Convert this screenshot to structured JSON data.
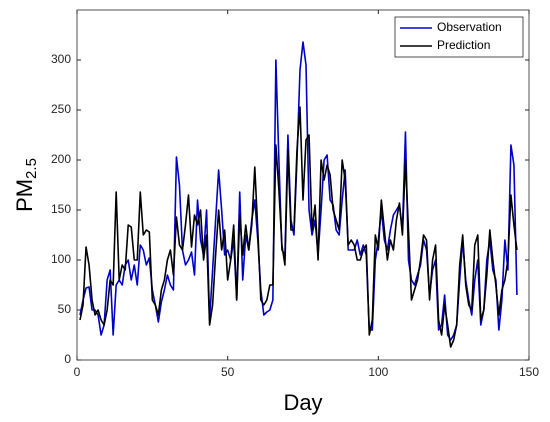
{
  "chart_data": {
    "type": "line",
    "xlabel": "Day",
    "ylabel": [
      "PM",
      "2.5"
    ],
    "x": [
      1,
      2,
      3,
      4,
      5,
      6,
      7,
      8,
      9,
      10,
      11,
      12,
      13,
      14,
      15,
      16,
      17,
      18,
      19,
      20,
      21,
      22,
      23,
      24,
      25,
      26,
      27,
      28,
      29,
      30,
      31,
      32,
      33,
      34,
      35,
      36,
      37,
      38,
      39,
      40,
      41,
      42,
      43,
      44,
      45,
      46,
      47,
      48,
      49,
      50,
      51,
      52,
      53,
      54,
      55,
      56,
      57,
      58,
      59,
      60,
      61,
      62,
      63,
      64,
      65,
      66,
      67,
      68,
      69,
      70,
      71,
      72,
      73,
      74,
      75,
      76,
      77,
      78,
      79,
      80,
      81,
      82,
      83,
      84,
      85,
      86,
      87,
      88,
      89,
      90,
      91,
      92,
      93,
      94,
      95,
      96,
      97,
      98,
      99,
      100,
      101,
      102,
      103,
      104,
      105,
      106,
      107,
      108,
      109,
      110,
      111,
      112,
      113,
      114,
      115,
      116,
      117,
      118,
      119,
      120,
      121,
      122,
      123,
      124,
      125,
      126,
      127,
      128,
      129,
      130,
      131,
      132,
      133,
      134,
      135,
      136,
      137,
      138,
      139,
      140,
      141,
      142,
      143,
      144,
      145,
      146
    ],
    "series": [
      {
        "name": "Observation",
        "color": "#0000cd",
        "values": [
          45,
          60,
          72,
          73,
          50,
          50,
          45,
          25,
          35,
          80,
          90,
          25,
          75,
          80,
          75,
          95,
          100,
          80,
          95,
          75,
          115,
          110,
          95,
          102,
          70,
          55,
          38,
          58,
          70,
          85,
          75,
          70,
          203,
          175,
          110,
          95,
          100,
          108,
          85,
          160,
          120,
          105,
          150,
          40,
          90,
          140,
          190,
          150,
          105,
          110,
          100,
          120,
          60,
          168,
          80,
          125,
          110,
          140,
          160,
          120,
          70,
          45,
          48,
          50,
          60,
          300,
          200,
          110,
          105,
          225,
          140,
          125,
          200,
          290,
          318,
          295,
          150,
          125,
          140,
          105,
          150,
          200,
          205,
          160,
          155,
          130,
          125,
          160,
          190,
          110,
          110,
          110,
          120,
          105,
          115,
          105,
          30,
          30,
          100,
          120,
          150,
          120,
          110,
          130,
          145,
          150,
          155,
          130,
          228,
          100,
          80,
          75,
          85,
          95,
          120,
          110,
          65,
          90,
          100,
          30,
          35,
          65,
          25,
          20,
          25,
          35,
          80,
          120,
          80,
          60,
          45,
          80,
          100,
          35,
          50,
          100,
          120,
          90,
          80,
          30,
          60,
          120,
          90,
          215,
          195,
          65
        ]
      },
      {
        "name": "Prediction",
        "color": "#000000",
        "values": [
          40,
          55,
          113,
          95,
          60,
          45,
          50,
          40,
          35,
          50,
          80,
          75,
          168,
          80,
          95,
          90,
          135,
          133,
          100,
          100,
          168,
          125,
          130,
          128,
          60,
          55,
          45,
          70,
          80,
          100,
          110,
          85,
          143,
          115,
          110,
          135,
          165,
          113,
          145,
          135,
          150,
          100,
          125,
          35,
          55,
          105,
          150,
          110,
          130,
          80,
          100,
          135,
          60,
          145,
          105,
          135,
          110,
          135,
          193,
          130,
          60,
          55,
          60,
          75,
          75,
          215,
          170,
          115,
          95,
          210,
          130,
          130,
          210,
          253,
          160,
          220,
          225,
          130,
          155,
          100,
          200,
          180,
          195,
          185,
          150,
          140,
          130,
          200,
          180,
          115,
          120,
          115,
          100,
          100,
          110,
          115,
          25,
          40,
          125,
          110,
          160,
          130,
          100,
          120,
          110,
          140,
          157,
          125,
          200,
          130,
          60,
          70,
          80,
          100,
          125,
          120,
          60,
          100,
          115,
          40,
          25,
          55,
          35,
          13,
          20,
          35,
          95,
          125,
          75,
          55,
          50,
          115,
          125,
          40,
          50,
          85,
          130,
          100,
          75,
          45,
          70,
          80,
          100,
          165,
          135,
          110
        ]
      }
    ],
    "xlim": [
      0,
      150
    ],
    "xticks": [
      0,
      50,
      100,
      150
    ],
    "ylim": [
      0,
      350
    ],
    "yticks": [
      0,
      50,
      100,
      150,
      200,
      250,
      300
    ],
    "legend": "top-right"
  }
}
